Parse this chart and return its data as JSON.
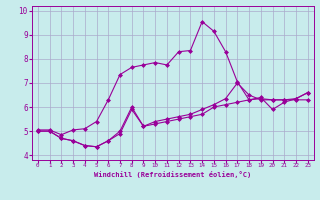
{
  "xlabel": "Windchill (Refroidissement éolien,°C)",
  "bg_color": "#c8ecec",
  "line_color": "#990099",
  "grid_color": "#aaaacc",
  "xlim": [
    -0.5,
    23.5
  ],
  "ylim": [
    3.8,
    10.2
  ],
  "yticks": [
    4,
    5,
    6,
    7,
    8,
    9,
    10
  ],
  "xticks": [
    0,
    1,
    2,
    3,
    4,
    5,
    6,
    7,
    8,
    9,
    10,
    11,
    12,
    13,
    14,
    15,
    16,
    17,
    18,
    19,
    20,
    21,
    22,
    23
  ],
  "series": [
    [
      5.0,
      5.0,
      4.7,
      4.6,
      4.4,
      4.35,
      4.6,
      4.9,
      5.9,
      5.2,
      5.3,
      5.4,
      5.5,
      5.6,
      5.7,
      6.0,
      6.1,
      6.2,
      6.3,
      6.35,
      6.3,
      6.3,
      6.3,
      6.3
    ],
    [
      5.0,
      5.0,
      4.7,
      4.6,
      4.4,
      4.35,
      4.6,
      5.0,
      6.0,
      5.2,
      5.4,
      5.5,
      5.6,
      5.7,
      5.9,
      6.1,
      6.35,
      7.0,
      6.5,
      6.3,
      6.3,
      6.3,
      6.35,
      6.6
    ],
    [
      5.05,
      5.05,
      4.85,
      5.05,
      5.1,
      5.4,
      6.3,
      7.35,
      7.65,
      7.75,
      7.85,
      7.75,
      8.3,
      8.35,
      9.55,
      9.15,
      8.3,
      7.05,
      6.3,
      6.4,
      5.9,
      6.2,
      6.35,
      6.6
    ]
  ]
}
